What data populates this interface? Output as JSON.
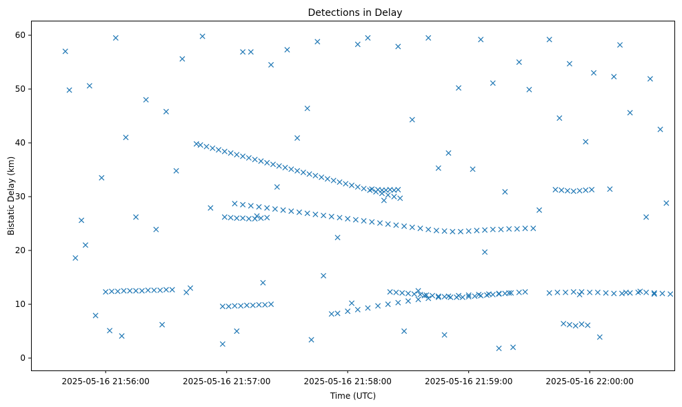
{
  "chart_data": {
    "type": "scatter",
    "title": "Detections in Delay",
    "xlabel": "Time (UTC)",
    "ylabel": "Bistatic Delay (km)",
    "marker": "x",
    "color": "#1f77b4",
    "grid": false,
    "legend": "none",
    "x_axis": {
      "kind": "datetime",
      "range": [
        "2025-05-16 21:55:23",
        "2025-05-16 22:00:42"
      ],
      "ticks": [
        "2025-05-16 21:56:00",
        "2025-05-16 21:57:00",
        "2025-05-16 21:58:00",
        "2025-05-16 21:59:00",
        "2025-05-16 22:00:00"
      ]
    },
    "y_axis": {
      "range": [
        -2.3,
        62.7
      ],
      "ticks": [
        "0",
        "10",
        "20",
        "30",
        "40",
        "50",
        "60"
      ]
    },
    "series": [
      {
        "x": [
          "2025-05-16 21:55:40",
          "2025-05-16 21:56:05",
          "2025-05-16 21:56:30",
          "2025-05-16 21:56:48",
          "2025-05-16 21:57:12",
          "2025-05-16 21:57:45",
          "2025-05-16 21:58:10",
          "2025-05-16 21:58:40",
          "2025-05-16 21:59:06",
          "2025-05-16 21:59:40",
          "2025-05-16 22:00:15",
          "2025-05-16 22:00:30",
          "2025-05-16 21:55:42",
          "2025-05-16 21:56:20",
          "2025-05-16 21:57:08",
          "2025-05-16 21:57:30",
          "2025-05-16 21:58:05",
          "2025-05-16 21:58:55",
          "2025-05-16 21:59:25",
          "2025-05-16 22:00:02",
          "2025-05-16 22:00:20",
          "2025-05-16 21:55:52",
          "2025-05-16 21:56:38",
          "2025-05-16 21:57:22",
          "2025-05-16 21:58:25",
          "2025-05-16 21:59:12",
          "2025-05-16 21:59:50",
          "2025-05-16 22:00:35",
          "2025-05-16 21:56:10",
          "2025-05-16 21:56:45",
          "2025-05-16 21:57:40",
          "2025-05-16 21:58:32",
          "2025-05-16 21:59:30",
          "2025-05-16 22:00:12",
          "2025-05-16 21:55:50",
          "2025-05-16 21:56:25",
          "2025-05-16 21:57:15",
          "2025-05-16 21:57:55",
          "2025-05-16 21:58:45",
          "2025-05-16 21:59:18",
          "2025-05-16 21:59:58",
          "2025-05-16 22:00:38",
          "2025-05-16 21:55:48",
          "2025-05-16 21:56:15",
          "2025-05-16 21:56:52",
          "2025-05-16 21:57:35",
          "2025-05-16 21:58:18",
          "2025-05-16 21:59:02",
          "2025-05-16 21:59:45",
          "2025-05-16 22:00:28",
          "2025-05-16 21:55:58",
          "2025-05-16 21:56:35",
          "2025-05-16 21:57:25",
          "2025-05-16 21:58:12",
          "2025-05-16 21:58:50",
          "2025-05-16 21:59:35",
          "2025-05-16 22:00:10",
          "2025-05-16 21:55:45",
          "2025-05-16 21:56:40",
          "2025-05-16 21:57:48",
          "2025-05-16 21:58:38",
          "2025-05-16 21:59:08",
          "2025-05-16 21:59:55",
          "2025-05-16 22:00:25",
          "2025-05-16 21:56:02",
          "2025-05-16 21:56:58",
          "2025-05-16 21:57:42",
          "2025-05-16 21:58:28",
          "2025-05-16 21:59:22",
          "2025-05-16 22:00:05",
          "2025-05-16 21:55:55",
          "2025-05-16 21:56:28",
          "2025-05-16 21:57:05",
          "2025-05-16 21:57:52",
          "2025-05-16 21:58:48",
          "2025-05-16 21:59:15",
          "2025-05-16 22:00:32",
          "2025-05-16 21:56:08",
          "2025-05-16 21:56:42",
          "2025-05-16 21:57:18",
          "2025-05-16 21:58:02",
          "2025-05-16 21:58:35",
          "2025-05-16 21:59:28",
          "2025-05-16 22:00:18",
          "2025-05-16 21:56:47",
          "2025-05-16 21:56:50",
          "2025-05-16 21:56:53",
          "2025-05-16 21:56:56",
          "2025-05-16 21:56:59",
          "2025-05-16 21:57:02",
          "2025-05-16 21:57:05",
          "2025-05-16 21:57:08",
          "2025-05-16 21:57:11",
          "2025-05-16 21:57:14",
          "2025-05-16 21:57:17",
          "2025-05-16 21:57:20",
          "2025-05-16 21:57:23",
          "2025-05-16 21:57:26",
          "2025-05-16 21:57:29",
          "2025-05-16 21:57:32",
          "2025-05-16 21:57:35",
          "2025-05-16 21:57:38",
          "2025-05-16 21:57:41",
          "2025-05-16 21:57:44",
          "2025-05-16 21:57:47",
          "2025-05-16 21:57:50",
          "2025-05-16 21:57:53",
          "2025-05-16 21:57:56",
          "2025-05-16 21:57:59",
          "2025-05-16 21:58:02",
          "2025-05-16 21:58:05",
          "2025-05-16 21:58:08",
          "2025-05-16 21:58:11",
          "2025-05-16 21:58:14",
          "2025-05-16 21:58:17",
          "2025-05-16 21:58:20",
          "2025-05-16 21:58:23",
          "2025-05-16 21:58:26",
          "2025-05-16 21:57:04",
          "2025-05-16 21:57:08",
          "2025-05-16 21:57:12",
          "2025-05-16 21:57:16",
          "2025-05-16 21:57:20",
          "2025-05-16 21:57:24",
          "2025-05-16 21:57:28",
          "2025-05-16 21:57:32",
          "2025-05-16 21:57:36",
          "2025-05-16 21:57:40",
          "2025-05-16 21:57:44",
          "2025-05-16 21:57:48",
          "2025-05-16 21:57:52",
          "2025-05-16 21:57:56",
          "2025-05-16 21:58:00",
          "2025-05-16 21:58:04",
          "2025-05-16 21:58:08",
          "2025-05-16 21:58:12",
          "2025-05-16 21:58:16",
          "2025-05-16 21:58:20",
          "2025-05-16 21:58:24",
          "2025-05-16 21:58:28",
          "2025-05-16 21:58:32",
          "2025-05-16 21:58:36",
          "2025-05-16 21:58:40",
          "2025-05-16 21:58:44",
          "2025-05-16 21:58:48",
          "2025-05-16 21:58:52",
          "2025-05-16 21:58:56",
          "2025-05-16 21:59:00",
          "2025-05-16 21:59:04",
          "2025-05-16 21:59:08",
          "2025-05-16 21:59:12",
          "2025-05-16 21:59:16",
          "2025-05-16 21:59:20",
          "2025-05-16 21:59:24",
          "2025-05-16 21:59:28",
          "2025-05-16 21:59:32",
          "2025-05-16 21:57:55",
          "2025-05-16 21:58:00",
          "2025-05-16 21:58:05",
          "2025-05-16 21:58:10",
          "2025-05-16 21:58:15",
          "2025-05-16 21:58:20",
          "2025-05-16 21:58:25",
          "2025-05-16 21:58:30",
          "2025-05-16 21:58:35",
          "2025-05-16 21:58:40",
          "2025-05-16 21:58:45",
          "2025-05-16 21:58:50",
          "2025-05-16 21:58:55",
          "2025-05-16 21:59:00",
          "2025-05-16 21:59:05",
          "2025-05-16 21:59:10",
          "2025-05-16 21:59:15",
          "2025-05-16 21:59:20",
          "2025-05-16 21:59:25",
          "2025-05-16 21:56:00",
          "2025-05-16 21:56:03",
          "2025-05-16 21:56:06",
          "2025-05-16 21:56:09",
          "2025-05-16 21:56:12",
          "2025-05-16 21:56:15",
          "2025-05-16 21:56:18",
          "2025-05-16 21:56:21",
          "2025-05-16 21:56:24",
          "2025-05-16 21:56:27",
          "2025-05-16 21:56:30",
          "2025-05-16 21:56:33",
          "2025-05-16 21:56:58",
          "2025-05-16 21:57:01",
          "2025-05-16 21:57:04",
          "2025-05-16 21:57:07",
          "2025-05-16 21:57:10",
          "2025-05-16 21:57:13",
          "2025-05-16 21:57:16",
          "2025-05-16 21:57:19",
          "2025-05-16 21:57:22",
          "2025-05-16 21:58:21",
          "2025-05-16 21:58:24",
          "2025-05-16 21:58:27",
          "2025-05-16 21:58:30",
          "2025-05-16 21:58:33",
          "2025-05-16 21:58:36",
          "2025-05-16 21:58:39",
          "2025-05-16 21:58:42",
          "2025-05-16 21:58:45",
          "2025-05-16 21:58:48",
          "2025-05-16 21:58:51",
          "2025-05-16 21:58:54",
          "2025-05-16 21:58:57",
          "2025-05-16 21:59:00",
          "2025-05-16 21:59:03",
          "2025-05-16 21:59:06",
          "2025-05-16 21:59:09",
          "2025-05-16 21:59:12",
          "2025-05-16 21:59:15",
          "2025-05-16 21:59:18",
          "2025-05-16 21:59:21",
          "2025-05-16 21:56:59",
          "2025-05-16 21:57:02",
          "2025-05-16 21:57:05",
          "2025-05-16 21:57:08",
          "2025-05-16 21:57:11",
          "2025-05-16 21:57:14",
          "2025-05-16 21:57:17",
          "2025-05-16 21:57:20",
          "2025-05-16 21:58:15",
          "2025-05-16 21:58:17",
          "2025-05-16 21:58:19",
          "2025-05-16 21:58:21",
          "2025-05-16 21:58:23",
          "2025-05-16 21:58:25",
          "2025-05-16 21:59:40",
          "2025-05-16 21:59:44",
          "2025-05-16 21:59:48",
          "2025-05-16 21:59:52",
          "2025-05-16 21:59:56",
          "2025-05-16 22:00:00",
          "2025-05-16 22:00:04",
          "2025-05-16 22:00:08",
          "2025-05-16 22:00:12",
          "2025-05-16 22:00:16",
          "2025-05-16 22:00:20",
          "2025-05-16 22:00:24",
          "2025-05-16 22:00:28",
          "2025-05-16 22:00:32",
          "2025-05-16 22:00:36",
          "2025-05-16 22:00:40",
          "2025-05-16 21:59:43",
          "2025-05-16 21:59:46",
          "2025-05-16 21:59:49",
          "2025-05-16 21:59:52",
          "2025-05-16 21:59:55",
          "2025-05-16 21:59:58",
          "2025-05-16 22:00:01",
          "2025-05-16 21:59:47",
          "2025-05-16 21:59:50",
          "2025-05-16 21:59:53",
          "2025-05-16 21:59:56",
          "2025-05-16 21:59:59"
        ],
        "y": [
          57.0,
          59.5,
          45.8,
          59.8,
          56.9,
          58.8,
          59.5,
          59.5,
          59.2,
          59.2,
          58.2,
          51.9,
          49.8,
          48.0,
          56.9,
          57.3,
          58.3,
          50.2,
          55.0,
          53.0,
          45.6,
          50.6,
          55.6,
          54.5,
          57.9,
          51.1,
          54.7,
          42.5,
          41.0,
          39.8,
          46.4,
          44.3,
          49.9,
          52.3,
          21.0,
          23.9,
          26.4,
          22.4,
          35.3,
          30.9,
          40.2,
          28.8,
          25.6,
          26.2,
          27.9,
          40.9,
          29.3,
          35.1,
          44.6,
          26.2,
          33.5,
          34.8,
          31.8,
          31.4,
          38.1,
          27.5,
          31.4,
          18.6,
          12.2,
          15.3,
          11.6,
          19.7,
          11.8,
          12.4,
          5.1,
          2.6,
          3.4,
          5.0,
          2.0,
          3.9,
          7.9,
          6.2,
          5.0,
          8.2,
          4.3,
          1.8,
          11.9,
          4.1,
          13.0,
          14.0,
          10.2,
          12.5,
          12.3,
          12.2,
          39.6,
          39.3,
          39.0,
          38.7,
          38.4,
          38.1,
          37.8,
          37.5,
          37.2,
          36.9,
          36.6,
          36.3,
          36.0,
          35.7,
          35.4,
          35.1,
          34.8,
          34.5,
          34.2,
          33.9,
          33.6,
          33.3,
          33.0,
          32.7,
          32.4,
          32.1,
          31.8,
          31.5,
          31.2,
          30.9,
          30.6,
          30.3,
          30.0,
          29.7,
          28.7,
          28.5,
          28.3,
          28.1,
          27.9,
          27.7,
          27.5,
          27.3,
          27.1,
          26.9,
          26.7,
          26.5,
          26.3,
          26.1,
          25.9,
          25.7,
          25.5,
          25.3,
          25.1,
          24.9,
          24.7,
          24.5,
          24.3,
          24.1,
          23.9,
          23.7,
          23.6,
          23.5,
          23.5,
          23.6,
          23.7,
          23.8,
          23.9,
          23.9,
          24.0,
          24.0,
          24.1,
          24.1,
          8.3,
          8.7,
          9.0,
          9.3,
          9.7,
          10.0,
          10.3,
          10.6,
          10.9,
          11.1,
          11.3,
          11.5,
          11.6,
          11.7,
          11.8,
          11.9,
          12.0,
          12.1,
          12.2,
          12.3,
          12.4,
          12.4,
          12.5,
          12.5,
          12.5,
          12.5,
          12.6,
          12.6,
          12.6,
          12.7,
          12.7,
          9.6,
          9.6,
          9.7,
          9.7,
          9.8,
          9.8,
          9.9,
          9.9,
          10.0,
          12.3,
          12.2,
          12.1,
          12.0,
          11.9,
          11.8,
          11.7,
          11.6,
          11.5,
          11.4,
          11.3,
          11.3,
          11.3,
          11.4,
          11.5,
          11.6,
          11.7,
          11.8,
          11.9,
          12.0,
          12.1,
          26.2,
          26.1,
          26.0,
          26.0,
          25.9,
          25.9,
          26.0,
          26.1,
          31.3,
          31.2,
          31.2,
          31.3,
          31.2,
          31.3,
          12.1,
          12.2,
          12.2,
          12.3,
          12.3,
          12.2,
          12.2,
          12.1,
          12.0,
          12.0,
          12.1,
          12.2,
          12.2,
          12.1,
          12.0,
          11.9,
          31.3,
          31.2,
          31.1,
          31.0,
          31.1,
          31.2,
          31.3,
          6.4,
          6.2,
          6.0,
          6.3,
          6.1
        ]
      }
    ]
  }
}
